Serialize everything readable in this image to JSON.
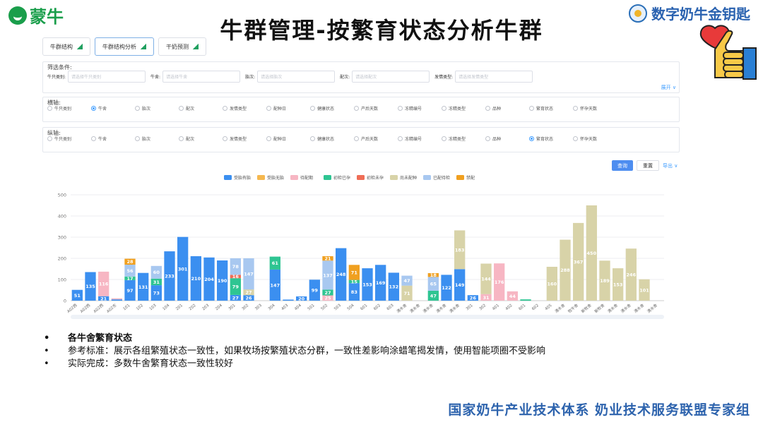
{
  "logo": {
    "text": "蒙牛"
  },
  "title": "牛群管理-按繁育状态分析牛群",
  "brand": {
    "text": "数字奶牛金钥匙"
  },
  "tabs": [
    {
      "label": "牛群结构"
    },
    {
      "label": "牛群结构分析"
    },
    {
      "label": "干奶预测"
    }
  ],
  "filter": {
    "label": "筛选条件:",
    "fields": [
      {
        "label": "牛只类别:",
        "placeholder": "请选择牛只类别"
      },
      {
        "label": "牛舍:",
        "placeholder": "请选择牛舍"
      },
      {
        "label": "胎次:",
        "placeholder": "请选择胎次"
      },
      {
        "label": "配次:",
        "placeholder": "请选择配次"
      },
      {
        "label": "发情类型:",
        "placeholder": "请选择发情类型"
      }
    ],
    "expand_label": "展开 ∨"
  },
  "x_axis_select": {
    "label": "横轴:",
    "options": [
      "牛只类别",
      "牛舍",
      "胎次",
      "配次",
      "发情类型",
      "配种日",
      "健康状态",
      "产后天数",
      "冻精编号",
      "冻精类型",
      "品种",
      "繁育状态",
      "怀孕天数"
    ],
    "selected": 1
  },
  "y_axis_select": {
    "label": "纵轴:",
    "options": [
      "牛只类别",
      "牛舍",
      "胎次",
      "配次",
      "发情类型",
      "配种日",
      "健康状态",
      "产后天数",
      "冻精编号",
      "冻精类型",
      "品种",
      "繁育状态",
      "怀孕天数"
    ],
    "selected": 11
  },
  "buttons": {
    "query": "查询",
    "reset": "重置",
    "export": "导出 ∨"
  },
  "notes": [
    "各牛舍繁育状态",
    "参考标准：展示各组繁殖状态一致性，如果牧场按繁殖状态分群，一致性差影响涂蜡笔揭发情，使用智能项圈不受影响",
    "实际完成：多数牛舍繁育状态一致性较好"
  ],
  "footer": "国家奶牛产业技术体系 奶业技术服务联盟专家组",
  "chart_data": {
    "type": "bar",
    "stacked": true,
    "ylim": [
      0,
      500
    ],
    "yticks": [
      0,
      100,
      200,
      300,
      400,
      500
    ],
    "legend_position": "top-center",
    "categories": [
      "A02西",
      "A02西",
      "A02西",
      "A02东",
      "101",
      "102",
      "103",
      "104",
      "201",
      "202",
      "203",
      "204",
      "301",
      "302",
      "303",
      "304",
      "403",
      "404",
      "501",
      "502",
      "503",
      "504",
      "601",
      "602",
      "603",
      "清水舍",
      "清水舍",
      "清水舍",
      "清水舍",
      "清水舍",
      "301",
      "302",
      "401",
      "402",
      "601",
      "602",
      "405",
      "清水舍",
      "牧牛舍",
      "新牧舍",
      "新牧舍",
      "清水舍",
      "清水舍",
      "清水舍",
      "清水舍"
    ],
    "series": [
      {
        "name": "受胎有胎",
        "color": "#3b8ff0",
        "values": [
          51,
          135,
          21,
          6,
          97,
          131,
          73,
          233,
          301,
          210,
          204,
          190,
          27,
          26,
          0,
          147,
          5,
          20,
          99,
          0,
          248,
          83,
          153,
          169,
          132,
          0,
          0,
          0,
          122,
          149,
          26,
          0,
          0,
          0,
          0,
          0,
          0,
          0,
          0,
          0,
          0,
          0,
          0,
          0,
          0
        ]
      },
      {
        "name": "受胎无胎",
        "color": "#f5b84f",
        "values": [
          0,
          0,
          0,
          0,
          0,
          0,
          0,
          0,
          0,
          0,
          0,
          0,
          0,
          0,
          0,
          0,
          0,
          0,
          0,
          0,
          0,
          0,
          0,
          0,
          0,
          0,
          0,
          0,
          0,
          0,
          0,
          0,
          0,
          0,
          0,
          0,
          0,
          0,
          0,
          0,
          0,
          0,
          0,
          0,
          0
        ]
      },
      {
        "name": "待配期",
        "color": "#f7b6c3",
        "values": [
          0,
          0,
          116,
          5,
          0,
          0,
          0,
          0,
          0,
          0,
          0,
          0,
          0,
          0,
          0,
          0,
          0,
          0,
          0,
          25,
          0,
          0,
          0,
          0,
          0,
          0,
          0,
          0,
          0,
          0,
          0,
          31,
          176,
          44,
          0,
          0,
          0,
          0,
          0,
          0,
          0,
          0,
          0,
          0,
          0
        ]
      },
      {
        "name": "初检已孕",
        "color": "#2ec592",
        "values": [
          0,
          0,
          0,
          0,
          17,
          0,
          31,
          0,
          0,
          0,
          0,
          0,
          79,
          0,
          0,
          61,
          0,
          0,
          0,
          27,
          0,
          15,
          0,
          0,
          0,
          0,
          0,
          47,
          0,
          0,
          0,
          0,
          0,
          0,
          6,
          0,
          0,
          0,
          0,
          0,
          0,
          0,
          0,
          0,
          0
        ]
      },
      {
        "name": "初检未孕",
        "color": "#ef6d56",
        "values": [
          0,
          0,
          0,
          0,
          0,
          0,
          0,
          0,
          0,
          0,
          0,
          0,
          16,
          0,
          0,
          0,
          0,
          0,
          0,
          0,
          0,
          0,
          0,
          0,
          0,
          0,
          0,
          0,
          0,
          0,
          0,
          0,
          0,
          0,
          0,
          0,
          0,
          0,
          0,
          0,
          0,
          0,
          0,
          0,
          0
        ]
      },
      {
        "name": "尚未配种",
        "color": "#d8d3a8",
        "values": [
          0,
          0,
          0,
          0,
          0,
          0,
          0,
          0,
          0,
          0,
          0,
          0,
          0,
          27,
          0,
          0,
          0,
          0,
          0,
          0,
          0,
          0,
          0,
          0,
          0,
          71,
          0,
          0,
          0,
          183,
          0,
          144,
          0,
          0,
          0,
          0,
          160,
          288,
          367,
          450,
          189,
          153,
          246,
          101,
          0
        ]
      },
      {
        "name": "已配待检",
        "color": "#a8c8f0",
        "values": [
          0,
          0,
          0,
          0,
          56,
          0,
          60,
          0,
          0,
          0,
          0,
          0,
          78,
          147,
          0,
          0,
          0,
          0,
          0,
          137,
          0,
          0,
          0,
          0,
          0,
          47,
          0,
          65,
          0,
          0,
          0,
          0,
          0,
          0,
          0,
          0,
          0,
          0,
          0,
          0,
          0,
          0,
          0,
          0,
          0
        ]
      },
      {
        "name": "禁配",
        "color": "#f0a020",
        "values": [
          0,
          0,
          0,
          0,
          28,
          0,
          0,
          0,
          0,
          0,
          0,
          0,
          0,
          0,
          0,
          0,
          0,
          0,
          0,
          21,
          0,
          71,
          0,
          0,
          0,
          0,
          0,
          18,
          0,
          0,
          0,
          0,
          0,
          0,
          0,
          0,
          0,
          0,
          0,
          0,
          0,
          0,
          0,
          0,
          0
        ]
      }
    ]
  }
}
